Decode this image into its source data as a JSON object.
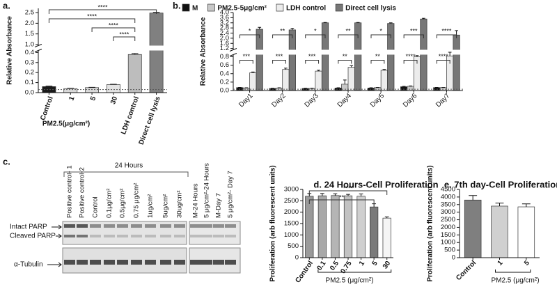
{
  "chart_data": [
    {
      "type": "bar",
      "title": "a.",
      "y_label": "Relative Absorbance",
      "x_label": "PM2.5(μg/cm²)",
      "categories": [
        "Control",
        "1",
        "5",
        "30",
        "LDH control",
        "Direct cell lysis"
      ],
      "values": [
        0.06,
        0.04,
        0.05,
        0.08,
        0.38,
        2.48
      ],
      "errors": [
        0.005,
        0.003,
        0.003,
        0.003,
        0.01,
        0.03
      ],
      "colors": [
        "#1a1a1a",
        "#d9d9d9",
        "#d9d9d9",
        "#e3e3e3",
        "#bdbdbd",
        "#808080"
      ],
      "ylim": [
        0,
        2.7
      ],
      "ybreak": [
        0.42,
        0.95
      ],
      "yticks": [
        {
          "value": 0,
          "label": "0.0"
        },
        0.1,
        0.2,
        0.3,
        0.4,
        {
          "value": 1,
          "label": "1.0"
        },
        1.5,
        {
          "value": 2,
          "label": "2.0"
        },
        2.5
      ],
      "reference_line": 0.03,
      "brackets": [
        {
          "from": "Control",
          "to": "Direct cell lysis",
          "label": "****"
        },
        {
          "from": "Control",
          "to": "LDH control",
          "label": "****"
        },
        {
          "from": "5",
          "to": "LDH control",
          "label": "****"
        },
        {
          "from": "30",
          "to": "LDH control",
          "label": "****"
        }
      ]
    },
    {
      "type": "bar",
      "title": "b.",
      "y_label": "Relative Absorbance",
      "categories": [
        "Day1",
        "Day2",
        "Day3",
        "Day4",
        "Day5",
        "Day6",
        "Day7"
      ],
      "series": [
        {
          "name": "M",
          "color": "#111111",
          "values": [
            0.07,
            0.05,
            0.05,
            0.06,
            0.06,
            0.09,
            0.07
          ],
          "errors": [
            0.005,
            0.005,
            0.005,
            0.005,
            0.005,
            0.01,
            0.005
          ]
        },
        {
          "name": "PM2.5-5μg/cm²",
          "color": "#c8c8c8",
          "values": [
            0.06,
            0.06,
            0.05,
            0.15,
            0.07,
            0.1,
            0.07
          ],
          "errors": [
            0.005,
            0.005,
            0.005,
            0.1,
            0.005,
            0.01,
            0.005
          ]
        },
        {
          "name": "LDH control",
          "color": "#ececec",
          "values": [
            0.42,
            0.5,
            0.46,
            0.55,
            0.48,
            0.8,
            0.82
          ],
          "errors": [
            0.02,
            0.03,
            0.02,
            0.04,
            0.02,
            0.03,
            0.05
          ]
        },
        {
          "name": "Direct cell lysis",
          "color": "#777777",
          "values": [
            2.7,
            2.65,
            3.2,
            3.2,
            3.15,
            3.5,
            2.25
          ],
          "errors": [
            0.15,
            0.12,
            0.03,
            0.03,
            0.05,
            0.05,
            0.35
          ]
        }
      ],
      "ylim": [
        0,
        4
      ],
      "ybreak": [
        0.85,
        1.1
      ],
      "yticks": [
        {
          "value": 0,
          "label": "0.0"
        },
        0.2,
        0.4,
        0.6,
        0.8,
        1.2,
        1.6,
        {
          "value": 2,
          "label": "2.0"
        },
        2.4,
        2.8,
        3.2,
        3.6,
        {
          "value": 4,
          "label": "4.0"
        }
      ],
      "reference_line": 0.03,
      "significance": [
        [
          "*",
          "***"
        ],
        [
          "**",
          "***"
        ],
        [
          "*",
          "***"
        ],
        [
          "**",
          "**"
        ],
        [
          "*",
          "**"
        ],
        [
          "***",
          "****"
        ],
        [
          "****",
          "****"
        ]
      ]
    },
    {
      "type": "bar",
      "title": "d. 24 Hours-Cell Proliferation",
      "y_label": "Proliferation (arb fluorescent units)",
      "x_label": "PM2.5 (μg/cm²)",
      "categories": [
        "Control",
        "0.1",
        "0.5",
        "0.75",
        "1",
        "5",
        "30"
      ],
      "values": [
        2700,
        2720,
        2730,
        2720,
        2700,
        2230,
        1740
      ],
      "errors": [
        120,
        100,
        80,
        60,
        100,
        140,
        50
      ],
      "colors": [
        "#9a9a9a",
        "#a8a8a8",
        "#b5b5b5",
        "#c2c2c2",
        "#cfcfcf",
        "#7a7a7a",
        "#f5f5f5"
      ],
      "ylim": [
        0,
        3000
      ],
      "yticks": [
        0,
        500,
        1000,
        1500,
        2000,
        2500,
        3000
      ],
      "brackets": [
        {
          "from": "Control",
          "to": "30",
          "label": "****"
        },
        {
          "from": "Control",
          "to": "5",
          "label": "**"
        }
      ]
    },
    {
      "type": "bar",
      "title": "e. 7th day-Cell Proliferation",
      "y_label": "Proliferation (arb fluorescent units)",
      "x_label": "PM2.5 (μg/cm²)",
      "categories": [
        "Control",
        "1",
        "5"
      ],
      "values": [
        3800,
        3400,
        3350
      ],
      "errors": [
        300,
        200,
        200
      ],
      "colors": [
        "#7f7f7f",
        "#d0d0d0",
        "#ffffff"
      ],
      "ylim": [
        0,
        4500
      ],
      "yticks": [
        0,
        500,
        1000,
        1500,
        2000,
        2500,
        3000,
        3500,
        4000,
        4500
      ]
    }
  ],
  "blot": {
    "title": "c.",
    "group_label": "24 Hours",
    "lanes": [
      "Positive control- 1",
      "Positive control-2",
      "Control",
      "0.1μg/cm²",
      "0.5μg/cm²",
      "0.75 μg/cm²",
      "1ug/cm²",
      "5ug/cm²",
      "30ug/cm²",
      "M-24 Hours",
      "5 μg/cm²-24 Hours",
      "M-Day 7",
      "5 μg/cm²- Day 7"
    ],
    "rows": [
      "Intact PARP",
      "Cleaved PARP",
      "α-Tubulin"
    ]
  }
}
